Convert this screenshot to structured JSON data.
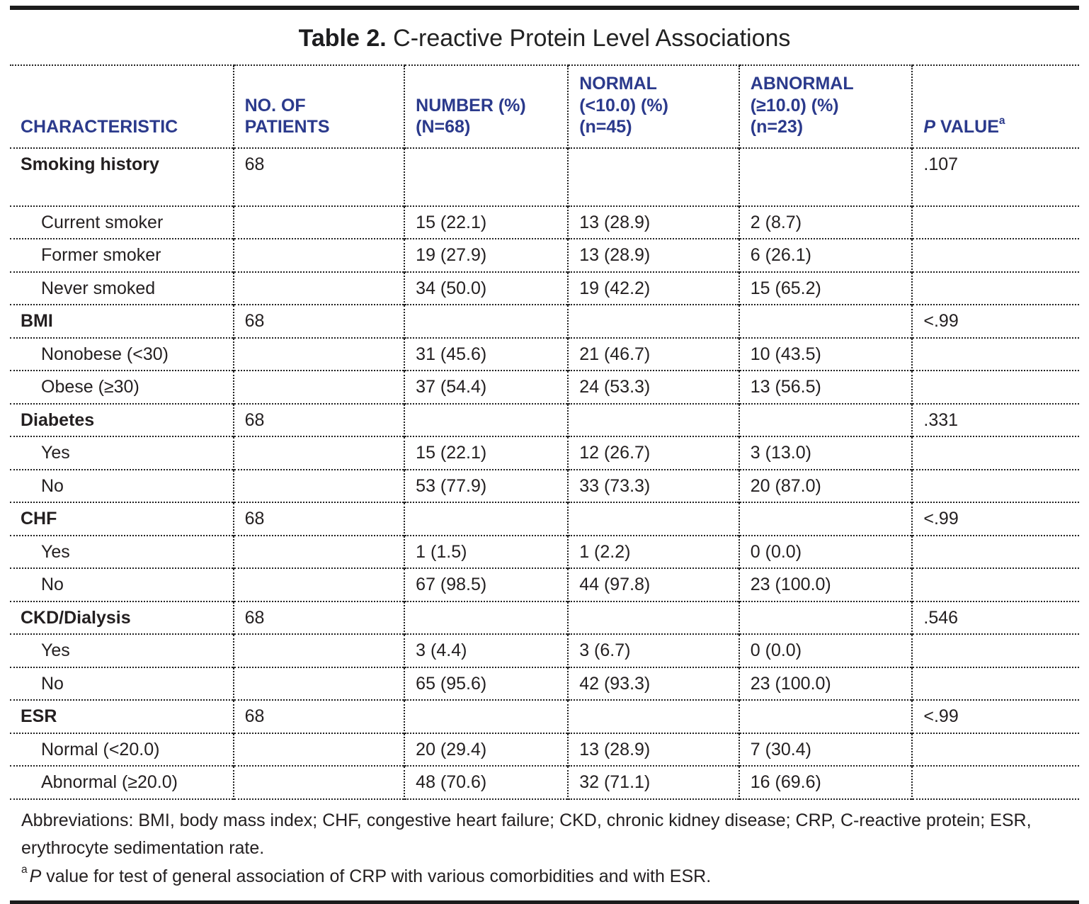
{
  "title": {
    "prefix": "Table 2.",
    "text": " C-reactive Protein Level Associations"
  },
  "table": {
    "headers": {
      "characteristic": "CHARACTERISTIC",
      "patients": "NO. OF\nPATIENTS",
      "number": "NUMBER (%)\n(N=68)",
      "normal": "NORMAL\n(<10.0) (%)\n(n=45)",
      "abnormal": "ABNORMAL\n(≥10.0) (%)\n(n=23)",
      "p_value": {
        "italic": "P",
        "rest": " VALUE",
        "sup": "a"
      }
    },
    "rows": [
      {
        "label": "Smoking history",
        "bold": true,
        "indent": false,
        "tall": true,
        "patients": "68",
        "number": "",
        "normal": "",
        "abnormal": "",
        "p": ".107"
      },
      {
        "label": "Current smoker",
        "bold": false,
        "indent": true,
        "tall": false,
        "patients": "",
        "number": "15 (22.1)",
        "normal": "13 (28.9)",
        "abnormal": "2 (8.7)",
        "p": ""
      },
      {
        "label": "Former smoker",
        "bold": false,
        "indent": true,
        "tall": false,
        "patients": "",
        "number": "19 (27.9)",
        "normal": "13 (28.9)",
        "abnormal": "6 (26.1)",
        "p": ""
      },
      {
        "label": "Never smoked",
        "bold": false,
        "indent": true,
        "tall": false,
        "patients": "",
        "number": "34 (50.0)",
        "normal": "19 (42.2)",
        "abnormal": "15 (65.2)",
        "p": ""
      },
      {
        "label": "BMI",
        "bold": true,
        "indent": false,
        "tall": false,
        "patients": "68",
        "number": "",
        "normal": "",
        "abnormal": "",
        "p": "<.99"
      },
      {
        "label": "Nonobese (<30)",
        "bold": false,
        "indent": true,
        "tall": false,
        "patients": "",
        "number": "31 (45.6)",
        "normal": "21 (46.7)",
        "abnormal": "10 (43.5)",
        "p": ""
      },
      {
        "label": "Obese (≥30)",
        "bold": false,
        "indent": true,
        "tall": false,
        "patients": "",
        "number": "37 (54.4)",
        "normal": "24 (53.3)",
        "abnormal": "13 (56.5)",
        "p": ""
      },
      {
        "label": "Diabetes",
        "bold": true,
        "indent": false,
        "tall": false,
        "patients": "68",
        "number": "",
        "normal": "",
        "abnormal": "",
        "p": ".331"
      },
      {
        "label": "Yes",
        "bold": false,
        "indent": true,
        "tall": false,
        "patients": "",
        "number": "15 (22.1)",
        "normal": "12 (26.7)",
        "abnormal": "3 (13.0)",
        "p": ""
      },
      {
        "label": "No",
        "bold": false,
        "indent": true,
        "tall": false,
        "patients": "",
        "number": "53 (77.9)",
        "normal": "33 (73.3)",
        "abnormal": "20 (87.0)",
        "p": ""
      },
      {
        "label": "CHF",
        "bold": true,
        "indent": false,
        "tall": false,
        "patients": "68",
        "number": "",
        "normal": "",
        "abnormal": "",
        "p": "<.99"
      },
      {
        "label": "Yes",
        "bold": false,
        "indent": true,
        "tall": false,
        "patients": "",
        "number": "1 (1.5)",
        "normal": "1 (2.2)",
        "abnormal": "0 (0.0)",
        "p": ""
      },
      {
        "label": "No",
        "bold": false,
        "indent": true,
        "tall": false,
        "patients": "",
        "number": "67 (98.5)",
        "normal": "44 (97.8)",
        "abnormal": "23 (100.0)",
        "p": ""
      },
      {
        "label": "CKD/Dialysis",
        "bold": true,
        "indent": false,
        "tall": false,
        "patients": "68",
        "number": "",
        "normal": "",
        "abnormal": "",
        "p": ".546"
      },
      {
        "label": "Yes",
        "bold": false,
        "indent": true,
        "tall": false,
        "patients": "",
        "number": "3 (4.4)",
        "normal": "3 (6.7)",
        "abnormal": "0 (0.0)",
        "p": ""
      },
      {
        "label": "No",
        "bold": false,
        "indent": true,
        "tall": false,
        "patients": "",
        "number": "65 (95.6)",
        "normal": "42 (93.3)",
        "abnormal": "23 (100.0)",
        "p": ""
      },
      {
        "label": "ESR",
        "bold": true,
        "indent": false,
        "tall": false,
        "patients": "68",
        "number": "",
        "normal": "",
        "abnormal": "",
        "p": "<.99"
      },
      {
        "label": "Normal (<20.0)",
        "bold": false,
        "indent": true,
        "tall": false,
        "patients": "",
        "number": "20 (29.4)",
        "normal": "13 (28.9)",
        "abnormal": "7 (30.4)",
        "p": ""
      },
      {
        "label": "Abnormal (≥20.0)",
        "bold": false,
        "indent": true,
        "tall": false,
        "patients": "",
        "number": "48 (70.6)",
        "normal": "32 (71.1)",
        "abnormal": "16 (69.6)",
        "p": ""
      }
    ]
  },
  "footnotes": {
    "abbreviations": "Abbreviations: BMI, body mass index; CHF, congestive heart failure; CKD, chronic kidney disease; CRP, C-reactive protein; ESR, erythrocyte sedimentation rate.",
    "p_note": {
      "sup": "a",
      "italic": "P",
      "rest": " value for test of general association of CRP with various comorbidities and with ESR."
    }
  },
  "colors": {
    "header_blue": "#2b3a8c",
    "body_text": "#231f20",
    "rule_black": "#1c1c1c"
  }
}
